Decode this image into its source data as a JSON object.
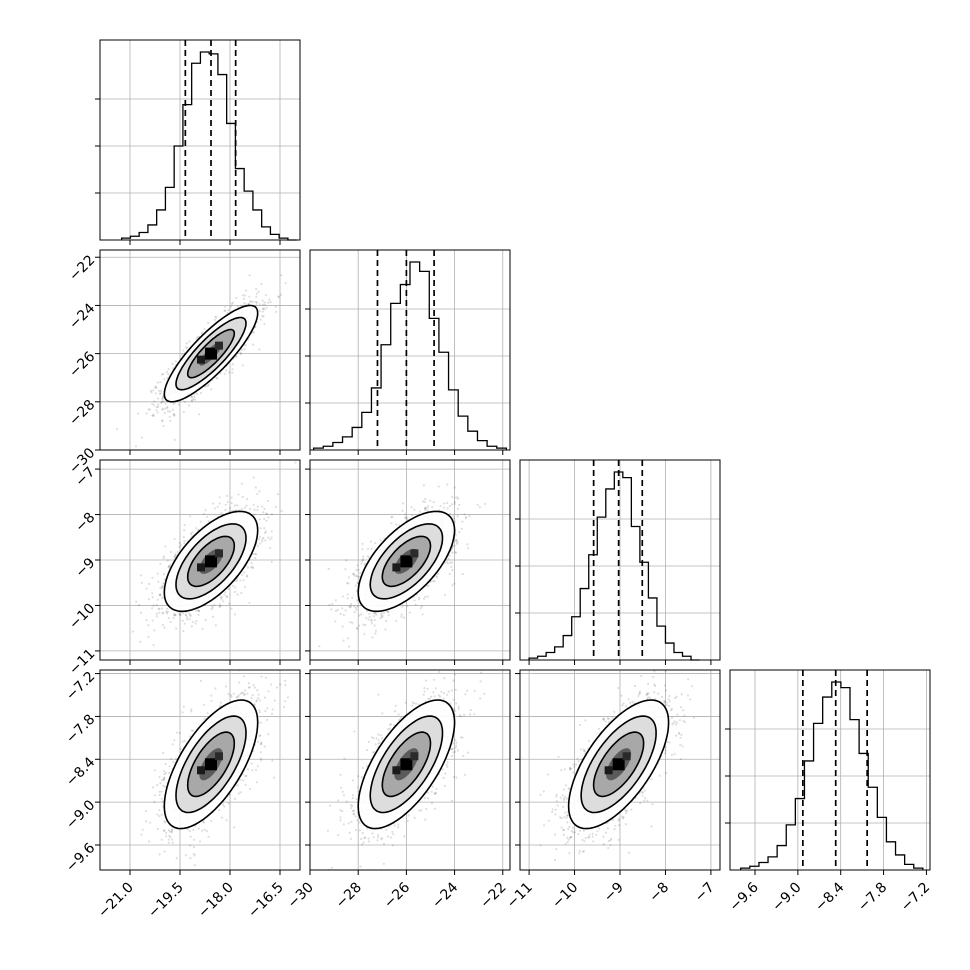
{
  "chart_data": {
    "type": "corner",
    "title": "",
    "grid": true,
    "parameters": [
      {
        "label": "",
        "range": [
          -21.9,
          -15.9
        ],
        "ticks": [
          -21.0,
          -19.5,
          -18.0,
          -16.5
        ],
        "tick_labels": [
          "−21.0",
          "−19.5",
          "−18.0",
          "−16.5"
        ],
        "quantiles": [
          -19.34,
          -18.57,
          -17.83
        ]
      },
      {
        "label": "",
        "range": [
          -30,
          -21.7
        ],
        "ticks": [
          -30,
          -28,
          -26,
          -24,
          -22
        ],
        "tick_labels": [
          "−30",
          "−28",
          "−26",
          "−24",
          "−22"
        ],
        "quantiles": [
          -27.2,
          -26.0,
          -24.85
        ]
      },
      {
        "label": "",
        "range": [
          -11.2,
          -6.8
        ],
        "ticks": [
          -11,
          -10,
          -9,
          -8,
          -7
        ],
        "tick_labels": [
          "−11",
          "−10",
          "−9",
          "−8",
          "−7"
        ],
        "quantiles": [
          -9.58,
          -9.03,
          -8.51
        ]
      },
      {
        "label": "",
        "range": [
          -9.95,
          -7.15
        ],
        "ticks": [
          -9.6,
          -9.0,
          -8.4,
          -7.8,
          -7.2
        ],
        "tick_labels": [
          "−9.6",
          "−9.0",
          "−8.4",
          "−7.8",
          "−7.2"
        ],
        "quantiles": [
          -8.93,
          -8.47,
          -8.03
        ]
      }
    ],
    "marginal_histograms": [
      {
        "parameter": 0,
        "bin_range": [
          -21.25,
          -16.0
        ],
        "counts": [
          1,
          2,
          4,
          8,
          16,
          28,
          50,
          72,
          94,
          100,
          99,
          88,
          62,
          38,
          26,
          16,
          7,
          3,
          1,
          0
        ]
      },
      {
        "parameter": 1,
        "bin_range": [
          -29.85,
          -21.85
        ],
        "counts": [
          1,
          2,
          4,
          7,
          12,
          20,
          33,
          56,
          78,
          88,
          100,
          95,
          70,
          52,
          32,
          18,
          10,
          5,
          2,
          1
        ]
      },
      {
        "parameter": 2,
        "bin_range": [
          -11.0,
          -7.25
        ],
        "counts": [
          1,
          2,
          4,
          7,
          13,
          23,
          38,
          56,
          76,
          91,
          100,
          97,
          71,
          52,
          33,
          18,
          9,
          4,
          2,
          0
        ]
      },
      {
        "parameter": 3,
        "bin_range": [
          -9.8,
          -7.25
        ],
        "counts": [
          1,
          2,
          4,
          7,
          13,
          24,
          38,
          58,
          78,
          92,
          100,
          97,
          80,
          62,
          44,
          28,
          15,
          8,
          3,
          1
        ]
      }
    ],
    "joint_panels": [
      {
        "x_param": 0,
        "y_param": 1,
        "mean": [
          -18.57,
          -26.0
        ],
        "sd": [
          0.7,
          1.0
        ],
        "corr": 0.84
      },
      {
        "x_param": 0,
        "y_param": 2,
        "mean": [
          -18.57,
          -9.03
        ],
        "sd": [
          0.7,
          0.55
        ],
        "corr": 0.62
      },
      {
        "x_param": 1,
        "y_param": 2,
        "mean": [
          -26.0,
          -9.03
        ],
        "sd": [
          1.0,
          0.55
        ],
        "corr": 0.62
      },
      {
        "x_param": 0,
        "y_param": 3,
        "mean": [
          -18.57,
          -8.47
        ],
        "sd": [
          0.7,
          0.45
        ],
        "corr": 0.65
      },
      {
        "x_param": 1,
        "y_param": 3,
        "mean": [
          -26.0,
          -8.47
        ],
        "sd": [
          1.0,
          0.45
        ],
        "corr": 0.65
      },
      {
        "x_param": 2,
        "y_param": 3,
        "mean": [
          -9.03,
          -8.47
        ],
        "sd": [
          0.55,
          0.45
        ],
        "corr": 0.65
      }
    ],
    "contour_levels_sigma": [
      0.5,
      1.0,
      1.5,
      2.0
    ]
  }
}
